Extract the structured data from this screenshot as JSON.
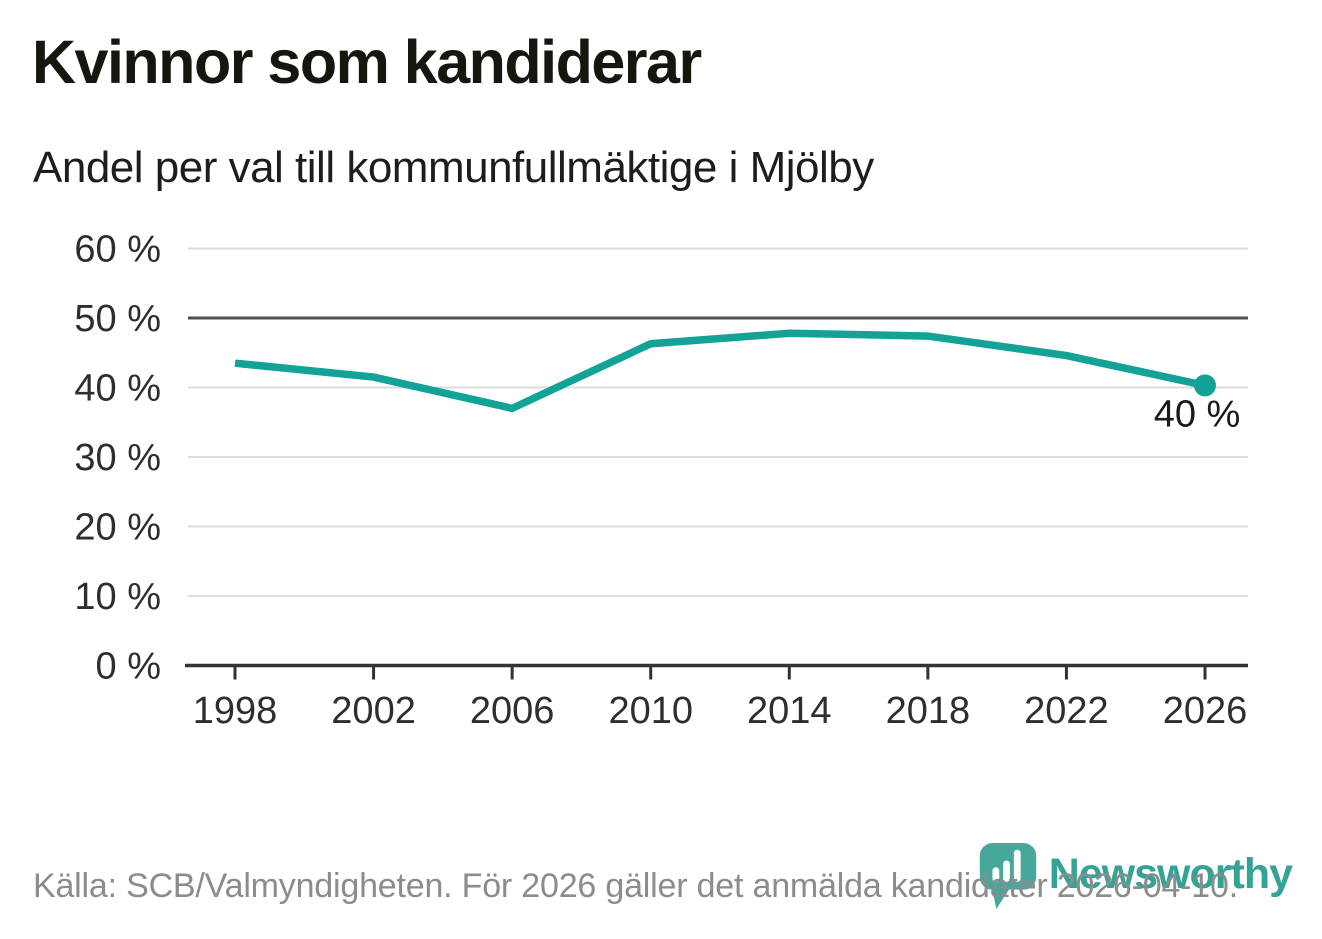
{
  "header": {
    "title": "Kvinnor som kandiderar",
    "subtitle": "Andel per val till kommunfullmäktige i Mjölby"
  },
  "chart_data": {
    "type": "line",
    "title": "Kvinnor som kandiderar",
    "subtitle": "Andel per val till kommunfullmäktige i Mjölby",
    "x": [
      1998,
      2002,
      2006,
      2010,
      2014,
      2018,
      2022,
      2026
    ],
    "xtick_labels": [
      "1998",
      "2002",
      "2006",
      "2010",
      "2014",
      "2018",
      "2022",
      "2026"
    ],
    "values": [
      43.5,
      41.5,
      37.0,
      46.3,
      47.8,
      47.4,
      44.6,
      40.3
    ],
    "ylim": [
      0,
      62
    ],
    "yticks": [
      0,
      10,
      20,
      30,
      40,
      50,
      60
    ],
    "ytick_labels": [
      "0 %",
      "10 %",
      "20 %",
      "30 %",
      "40 %",
      "50 %",
      "60 %"
    ],
    "grid": "horizontal",
    "legend": "none",
    "reference_line_y": 50,
    "end_point_label": "40 %",
    "line_color": "#13a296",
    "reference_line_color": "#4f4f4f",
    "grid_color": "#dcdcdc",
    "axis_color": "#333333",
    "tick_text_color": "#2e2e2e",
    "annotation_color": "#1a1a1a"
  },
  "footer": {
    "source": "Källa: SCB/Valmyndigheten. För 2026 gäller det anmälda kandidater 2026-04-10."
  },
  "branding": {
    "name": "Newsworthy",
    "color": "#35a296"
  }
}
